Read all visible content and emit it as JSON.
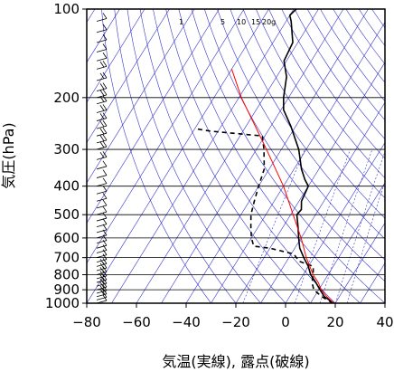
{
  "chart_data": {
    "type": "line",
    "subtype": "skew-T log-P",
    "xlabel": "気温(実線), 露点(破線)",
    "ylabel": "気圧(hPa)",
    "xlim": [
      -80,
      40
    ],
    "ylim": [
      1000,
      100
    ],
    "y_scale": "log",
    "x_ticks": [
      -80,
      -60,
      -40,
      -20,
      0,
      20,
      40
    ],
    "x_tick_labels": [
      "−80",
      "−60",
      "−40",
      "−20",
      "0",
      "20",
      "40"
    ],
    "y_ticks": [
      100,
      200,
      300,
      400,
      500,
      600,
      700,
      800,
      900,
      1000
    ],
    "y_tick_labels": [
      "100",
      "200",
      "300",
      "400",
      "500",
      "600",
      "700",
      "800",
      "900",
      "1000"
    ],
    "mixing_ratio_labels": [
      "1",
      "5",
      "10",
      "15",
      "20g"
    ],
    "series": [
      {
        "role": "temperature",
        "style": "solid",
        "color": "#000000",
        "points": [
          [
            1000,
            19.5
          ],
          [
            950,
            14
          ],
          [
            900,
            10.5
          ],
          [
            850,
            7
          ],
          [
            800,
            3
          ],
          [
            750,
            0
          ],
          [
            700,
            -4
          ],
          [
            650,
            -8
          ],
          [
            600,
            -11
          ],
          [
            550,
            -14
          ],
          [
            500,
            -17.5
          ],
          [
            480,
            -17
          ],
          [
            450,
            -19
          ],
          [
            400,
            -20
          ],
          [
            380,
            -23
          ],
          [
            350,
            -27
          ],
          [
            300,
            -33
          ],
          [
            250,
            -42
          ],
          [
            220,
            -49
          ],
          [
            200,
            -52
          ],
          [
            170,
            -56
          ],
          [
            150,
            -61
          ],
          [
            130,
            -62
          ],
          [
            110,
            -68
          ],
          [
            105,
            -70
          ],
          [
            100,
            -69
          ]
        ]
      },
      {
        "role": "dewpoint",
        "style": "dashed",
        "color": "#000000",
        "points": [
          [
            1000,
            19
          ],
          [
            950,
            13
          ],
          [
            900,
            8
          ],
          [
            850,
            5.5
          ],
          [
            800,
            4
          ],
          [
            750,
            2
          ],
          [
            720,
            -5
          ],
          [
            680,
            -9
          ],
          [
            650,
            -20
          ],
          [
            640,
            -27
          ],
          [
            600,
            -30
          ],
          [
            550,
            -33
          ],
          [
            500,
            -36
          ],
          [
            450,
            -38
          ],
          [
            400,
            -40
          ],
          [
            350,
            -42
          ],
          [
            300,
            -47
          ],
          [
            270,
            -51
          ],
          [
            260,
            -73
          ],
          [
            255,
            -80
          ]
        ]
      },
      {
        "role": "parcel",
        "style": "solid",
        "color": "#ff0000",
        "points": [
          [
            1000,
            19.5
          ],
          [
            950,
            15
          ],
          [
            900,
            11
          ],
          [
            850,
            8
          ],
          [
            800,
            4
          ],
          [
            700,
            -3
          ],
          [
            600,
            -10
          ],
          [
            500,
            -19
          ],
          [
            400,
            -30
          ],
          [
            300,
            -46
          ],
          [
            200,
            -69
          ],
          [
            160,
            -80
          ]
        ]
      }
    ],
    "wind_barbs": {
      "color": "#000000",
      "pressures": [
        1000,
        975,
        950,
        925,
        900,
        875,
        850,
        825,
        800,
        775,
        750,
        725,
        700,
        675,
        650,
        625,
        600,
        575,
        550,
        525,
        500,
        475,
        450,
        425,
        400,
        375,
        350,
        325,
        300,
        285,
        270,
        255,
        240,
        225,
        210,
        200,
        190,
        175,
        160,
        150,
        140,
        130,
        120,
        110,
        100
      ],
      "barbs": [
        1,
        1,
        2,
        2,
        2,
        2,
        2,
        2,
        2,
        2,
        2,
        1,
        1,
        1,
        1,
        1,
        1,
        1,
        1,
        1,
        1,
        1,
        1,
        1,
        1,
        1,
        1,
        2,
        2,
        2,
        2,
        2,
        2,
        2,
        2,
        2,
        2,
        2,
        2,
        1,
        1,
        1,
        1,
        1,
        1
      ]
    },
    "grid": true,
    "background_lines_color": "#3333cc"
  }
}
